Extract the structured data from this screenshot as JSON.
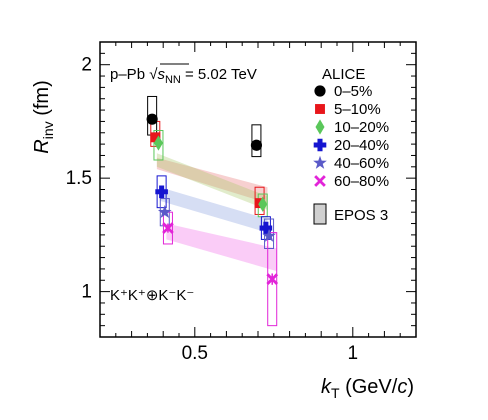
{
  "chart_data": {
    "type": "scatter",
    "title": "",
    "xlabel": {
      "main": "k",
      "sub": "T",
      "rest": " (GeV/",
      "italic_c": "c",
      "close": ")"
    },
    "ylabel": {
      "main": "R",
      "sub": "inv",
      "rest": " (fm)"
    },
    "xlim": [
      0.2,
      1.2
    ],
    "ylim": [
      0.8,
      2.1
    ],
    "xticks": [
      0.5,
      1
    ],
    "xtick_labels": [
      "0.5",
      "1"
    ],
    "yticks": [
      1,
      1.5,
      2
    ],
    "ytick_labels": [
      "1",
      "1.5",
      "2"
    ],
    "grid": false,
    "legend_position": "top-right",
    "annotations": {
      "system_prefix": "p–Pb ",
      "sqrt": "√",
      "s": "s",
      "nn": "NN",
      "energy": " = 5.02 TeV",
      "pair": "K⁺K⁺⊕K⁻K⁻"
    },
    "legend_header": "ALICE",
    "series": [
      {
        "name": "0–5%",
        "marker": "circle",
        "color": "#000000",
        "x": [
          0.365,
          0.695
        ],
        "y": [
          1.76,
          1.645
        ],
        "yerr": [
          0.012,
          0.018
        ],
        "sys_box": [
          [
            1.69,
            1.86
          ],
          [
            1.595,
            1.735
          ]
        ]
      },
      {
        "name": "5–10%",
        "marker": "square",
        "color": "#e8161b",
        "x": [
          0.375,
          0.705
        ],
        "y": [
          1.68,
          1.39
        ],
        "yerr": [
          0.012,
          0.015
        ],
        "sys_box": [
          [
            1.64,
            1.75
          ],
          [
            1.34,
            1.46
          ]
        ]
      },
      {
        "name": "10–20%",
        "marker": "diamond",
        "color": "#5ac75a",
        "x": [
          0.385,
          0.715
        ],
        "y": [
          1.655,
          1.385
        ],
        "yerr": [
          0.01,
          0.012
        ],
        "sys_box": [
          [
            1.58,
            1.71
          ],
          [
            1.33,
            1.43
          ]
        ]
      },
      {
        "name": "20–40%",
        "marker": "cross",
        "color": "#1515d0",
        "x": [
          0.395,
          0.725
        ],
        "y": [
          1.44,
          1.28
        ],
        "yerr": [
          0.012,
          0.014
        ],
        "sys_box": [
          [
            1.37,
            1.51
          ],
          [
            1.23,
            1.33
          ]
        ]
      },
      {
        "name": "40–60%",
        "marker": "star",
        "color": "#5a5ac8",
        "x": [
          0.405,
          0.735
        ],
        "y": [
          1.35,
          1.245
        ],
        "yerr": [
          0.012,
          0.014
        ],
        "sys_box": [
          [
            1.29,
            1.41
          ],
          [
            1.19,
            1.32
          ]
        ]
      },
      {
        "name": "60–80%",
        "marker": "x",
        "color": "#e224d8",
        "x": [
          0.415,
          0.745
        ],
        "y": [
          1.28,
          1.055
        ],
        "yerr": [
          0.02,
          0.025
        ],
        "sys_box": [
          [
            1.21,
            1.35
          ],
          [
            0.85,
            1.26
          ]
        ]
      }
    ],
    "model": {
      "name": "EPOS 3",
      "bands": [
        {
          "color": "#e87878",
          "x": [
            0.38,
            0.73
          ],
          "y_top": [
            1.59,
            1.46
          ],
          "y_bot": [
            1.54,
            1.39
          ]
        },
        {
          "color": "#a8c86a",
          "x": [
            0.38,
            0.73
          ],
          "y_top": [
            1.61,
            1.42
          ],
          "y_bot": [
            1.55,
            1.36
          ]
        },
        {
          "color": "#8aa0e0",
          "x": [
            0.39,
            0.73
          ],
          "y_top": [
            1.46,
            1.32
          ],
          "y_bot": [
            1.4,
            1.26
          ]
        },
        {
          "color": "#f06ee8",
          "x": [
            0.41,
            0.76
          ],
          "y_top": [
            1.3,
            1.19
          ],
          "y_bot": [
            1.23,
            1.09
          ]
        }
      ]
    }
  }
}
